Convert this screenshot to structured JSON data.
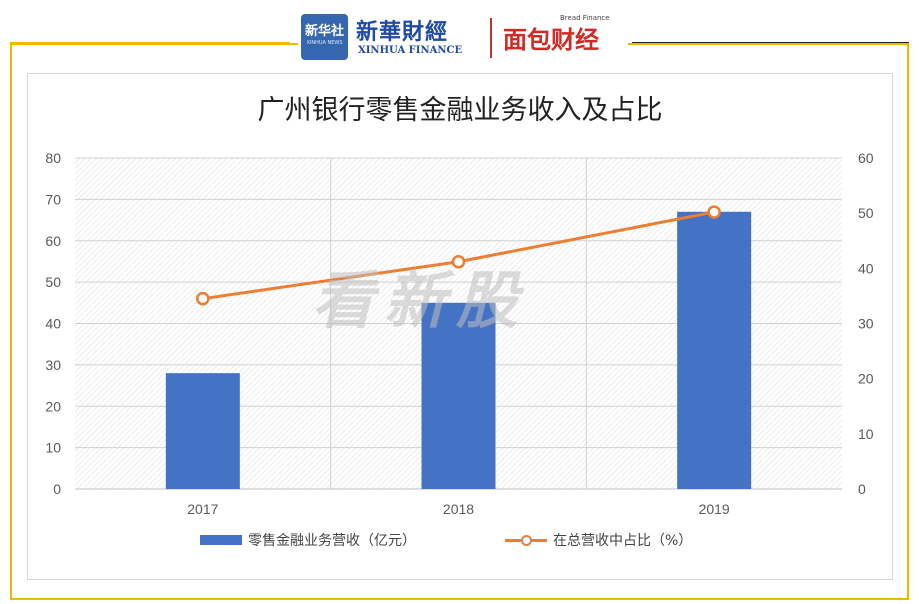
{
  "header": {
    "logo_box_text": "新华社",
    "logo_box_sub": "XINHUA NEWS",
    "brand_cn": "新華財經",
    "brand_en": "XINHUA FINANCE",
    "brand2": "面包财经",
    "brand2_tag": "Bread Finance"
  },
  "watermark": "看新股",
  "colors": {
    "frame": "#f0b800",
    "bar": "#4472c4",
    "line": "#ed7d31"
  },
  "chart_data": {
    "type": "bar",
    "title": "广州银行零售金融业务收入及占比",
    "categories": [
      "2017",
      "2018",
      "2019"
    ],
    "series": [
      {
        "name": "零售金融业务营收（亿元）",
        "type": "bar",
        "axis": "left",
        "values": [
          28,
          45,
          67
        ]
      },
      {
        "name": "在总营收中占比（%）",
        "type": "line",
        "axis": "right",
        "values": [
          34.5,
          41.2,
          50.2
        ]
      }
    ],
    "ylim_left": [
      0,
      80
    ],
    "yticks_left": [
      "0",
      "10",
      "20",
      "30",
      "40",
      "50",
      "60",
      "70",
      "80"
    ],
    "ylim_right": [
      0,
      60
    ],
    "yticks_right": [
      "0",
      "10",
      "20",
      "30",
      "40",
      "50",
      "60"
    ],
    "grid": true,
    "legend_position": "bottom"
  }
}
